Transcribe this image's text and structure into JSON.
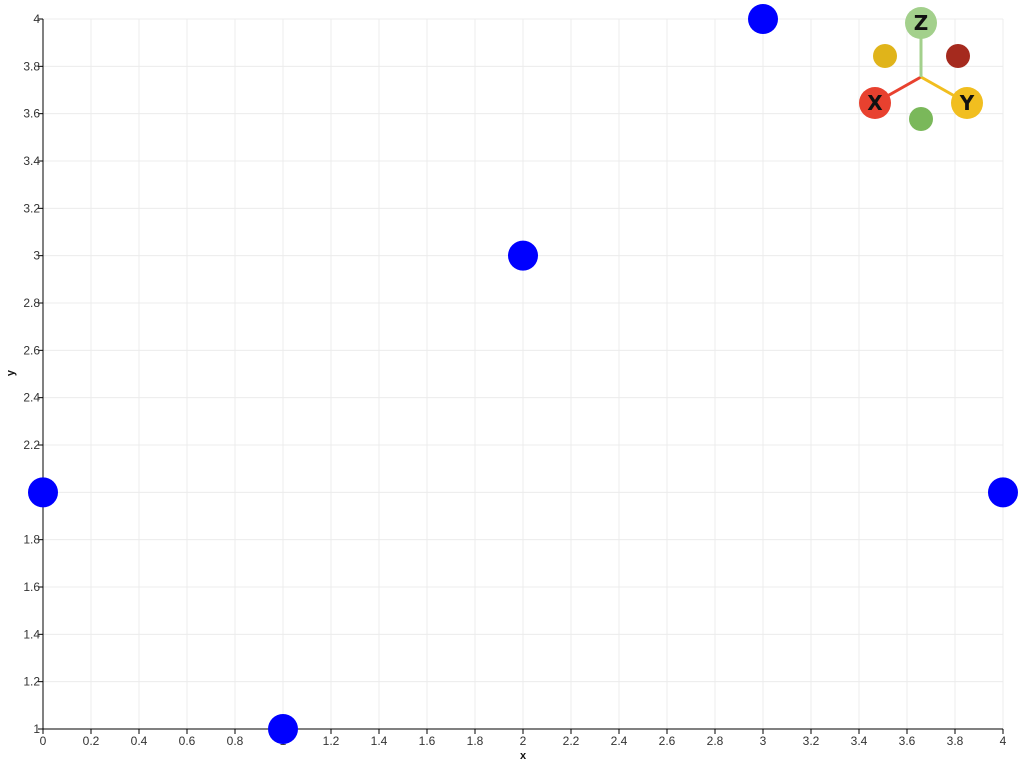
{
  "chart_data": {
    "type": "scatter",
    "series": [
      {
        "color": "#0000ff",
        "points": [
          {
            "x": 0,
            "y": 2
          },
          {
            "x": 1,
            "y": 1
          },
          {
            "x": 2,
            "y": 3
          },
          {
            "x": 3,
            "y": 4
          },
          {
            "x": 4,
            "y": 2
          }
        ]
      }
    ],
    "xlabel": "x",
    "ylabel": "y",
    "xlim": [
      0,
      4
    ],
    "ylim": [
      1,
      4
    ],
    "x_ticks": [
      "0",
      "0.2",
      "0.4",
      "0.6",
      "0.8",
      "1",
      "1.2",
      "1.4",
      "1.6",
      "1.8",
      "2",
      "2.2",
      "2.4",
      "2.6",
      "2.8",
      "3",
      "3.2",
      "3.4",
      "3.6",
      "3.8",
      "4"
    ],
    "y_ticks": [
      "1",
      "1.2",
      "1.4",
      "1.6",
      "1.8",
      "2",
      "2.2",
      "2.4",
      "2.6",
      "2.8",
      "3",
      "3.2",
      "3.4",
      "3.6",
      "3.8",
      "4"
    ],
    "grid": true
  },
  "orientation_widget": {
    "x_label": "X",
    "y_label": "Y",
    "z_label": "Z",
    "colors": {
      "x": "#e8412f",
      "y": "#f1be1f",
      "z": "#a3d08c",
      "neg_x": "#a52a1e",
      "neg_y": "#e0b41a",
      "neg_z": "#7ab85a"
    }
  }
}
